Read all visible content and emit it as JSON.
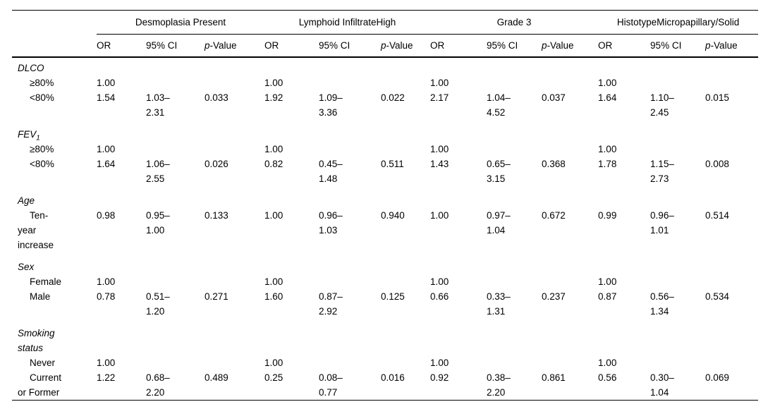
{
  "table": {
    "groups": [
      {
        "label": "Desmoplasia Present"
      },
      {
        "label": "Lymphoid InfiltrateHigh"
      },
      {
        "label": "Grade 3"
      },
      {
        "label": "HistotypeMicropapillary/Solid"
      }
    ],
    "subheaders": {
      "or": "OR",
      "ci": "95% CI",
      "p_italic": "p",
      "p_rest": "-Value"
    },
    "rows": [
      {
        "type": "group",
        "stub": "DLCO"
      },
      {
        "type": "item",
        "stub": "≥80%",
        "cells": [
          {
            "or": "1.00"
          },
          {
            "or": "1.00"
          },
          {
            "or": "1.00"
          },
          {
            "or": "1.00"
          }
        ]
      },
      {
        "type": "item",
        "stub": "<80%",
        "cells": [
          {
            "or": "1.54",
            "ci": "1.03–\n2.31",
            "p": "0.033"
          },
          {
            "or": "1.92",
            "ci": "1.09–\n3.36",
            "p": "0.022"
          },
          {
            "or": "2.17",
            "ci": "1.04–\n4.52",
            "p": "0.037"
          },
          {
            "or": "1.64",
            "ci": "1.10–\n2.45",
            "p": "0.015"
          }
        ]
      },
      {
        "type": "group",
        "stub": "FEV",
        "stub_sub": "1"
      },
      {
        "type": "item",
        "stub": "≥80%",
        "cells": [
          {
            "or": "1.00"
          },
          {
            "or": "1.00"
          },
          {
            "or": "1.00"
          },
          {
            "or": "1.00"
          }
        ]
      },
      {
        "type": "item",
        "stub": "<80%",
        "cells": [
          {
            "or": "1.64",
            "ci": "1.06–\n2.55",
            "p": "0.026"
          },
          {
            "or": "0.82",
            "ci": "0.45–\n1.48",
            "p": "0.511"
          },
          {
            "or": "1.43",
            "ci": "0.65–\n3.15",
            "p": "0.368"
          },
          {
            "or": "1.78",
            "ci": "1.15–\n2.73",
            "p": "0.008"
          }
        ]
      },
      {
        "type": "group",
        "stub": "Age"
      },
      {
        "type": "item",
        "stub": "Ten-\nyear\nincrease",
        "cells": [
          {
            "or": "0.98",
            "ci": "0.95–\n1.00",
            "p": "0.133"
          },
          {
            "or": "1.00",
            "ci": "0.96–\n1.03",
            "p": "0.940"
          },
          {
            "or": "1.00",
            "ci": "0.97–\n1.04",
            "p": "0.672"
          },
          {
            "or": "0.99",
            "ci": "0.96–\n1.01",
            "p": "0.514"
          }
        ]
      },
      {
        "type": "group",
        "stub": "Sex"
      },
      {
        "type": "item",
        "stub": "Female",
        "cells": [
          {
            "or": "1.00"
          },
          {
            "or": "1.00"
          },
          {
            "or": "1.00"
          },
          {
            "or": "1.00"
          }
        ]
      },
      {
        "type": "item",
        "stub": "Male",
        "cells": [
          {
            "or": "0.78",
            "ci": "0.51–\n1.20",
            "p": "0.271"
          },
          {
            "or": "1.60",
            "ci": "0.87–\n2.92",
            "p": "0.125"
          },
          {
            "or": "0.66",
            "ci": "0.33–\n1.31",
            "p": "0.237"
          },
          {
            "or": "0.87",
            "ci": "0.56–\n1.34",
            "p": "0.534"
          }
        ]
      },
      {
        "type": "group",
        "stub": "Smoking\nstatus"
      },
      {
        "type": "item",
        "stub": "Never",
        "cells": [
          {
            "or": "1.00"
          },
          {
            "or": "1.00"
          },
          {
            "or": "1.00"
          },
          {
            "or": "1.00"
          }
        ]
      },
      {
        "type": "item",
        "stub": "Current\nor Former",
        "cells": [
          {
            "or": "1.22",
            "ci": "0.68–\n2.20",
            "p": "0.489"
          },
          {
            "or": "0.25",
            "ci": "0.08–\n0.77",
            "p": "0.016"
          },
          {
            "or": "0.92",
            "ci": "0.38–\n2.20",
            "p": "0.861"
          },
          {
            "or": "0.56",
            "ci": "0.30–\n1.04",
            "p": "0.069"
          }
        ]
      }
    ]
  }
}
